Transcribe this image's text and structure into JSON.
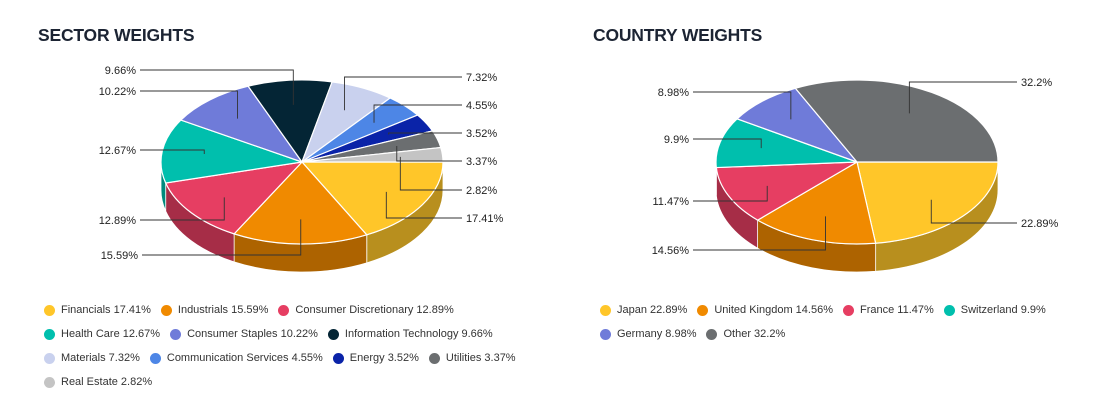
{
  "chart_data": [
    {
      "id": "sector",
      "type": "pie",
      "title": "SECTOR WEIGHTS",
      "slices": [
        {
          "label": "Financials",
          "value": 17.41,
          "value_label": "17.41%",
          "color": "#ffc629",
          "legend": "Financials 17.41%"
        },
        {
          "label": "Industrials",
          "value": 15.59,
          "value_label": "15.59%",
          "color": "#f08a00",
          "legend": "Industrials 15.59%"
        },
        {
          "label": "Consumer Discretionary",
          "value": 12.89,
          "value_label": "12.89%",
          "color": "#e63e62",
          "legend": "Consumer Discretionary 12.89%"
        },
        {
          "label": "Health Care",
          "value": 12.67,
          "value_label": "12.67%",
          "color": "#00bfad",
          "legend": "Health Care 12.67%"
        },
        {
          "label": "Consumer Staples",
          "value": 10.22,
          "value_label": "10.22%",
          "color": "#6f7bd9",
          "legend": "Consumer Staples 10.22%"
        },
        {
          "label": "Information Technology",
          "value": 9.66,
          "value_label": "9.66%",
          "color": "#042535",
          "legend": "Information Technology 9.66%"
        },
        {
          "label": "Materials",
          "value": 7.32,
          "value_label": "7.32%",
          "color": "#c9d1ee",
          "legend": "Materials 7.32%"
        },
        {
          "label": "Communication Services",
          "value": 4.55,
          "value_label": "4.55%",
          "color": "#4d86e6",
          "legend": "Communication Services 4.55%"
        },
        {
          "label": "Energy",
          "value": 3.52,
          "value_label": "3.52%",
          "color": "#0a23a8",
          "legend": "Energy 3.52%"
        },
        {
          "label": "Utilities",
          "value": 3.37,
          "value_label": "3.37%",
          "color": "#6b6e70",
          "legend": "Utilities 3.37%"
        },
        {
          "label": "Real Estate",
          "value": 2.82,
          "value_label": "2.82%",
          "color": "#c4c4c4",
          "legend": "Real Estate 2.82%"
        }
      ]
    },
    {
      "id": "country",
      "type": "pie",
      "title": "COUNTRY WEIGHTS",
      "slices": [
        {
          "label": "Japan",
          "value": 22.89,
          "value_label": "22.89%",
          "color": "#ffc629",
          "legend": "Japan 22.89%"
        },
        {
          "label": "United Kingdom",
          "value": 14.56,
          "value_label": "14.56%",
          "color": "#f08a00",
          "legend": "United Kingdom 14.56%"
        },
        {
          "label": "France",
          "value": 11.47,
          "value_label": "11.47%",
          "color": "#e63e62",
          "legend": "France 11.47%"
        },
        {
          "label": "Switzerland",
          "value": 9.9,
          "value_label": "9.9%",
          "color": "#00bfad",
          "legend": "Switzerland 9.9%"
        },
        {
          "label": "Germany",
          "value": 8.98,
          "value_label": "8.98%",
          "color": "#6f7bd9",
          "legend": "Germany 8.98%"
        },
        {
          "label": "Other",
          "value": 32.2,
          "value_label": "32.2%",
          "color": "#6b6e70",
          "legend": "Other 32.2%"
        }
      ]
    }
  ]
}
